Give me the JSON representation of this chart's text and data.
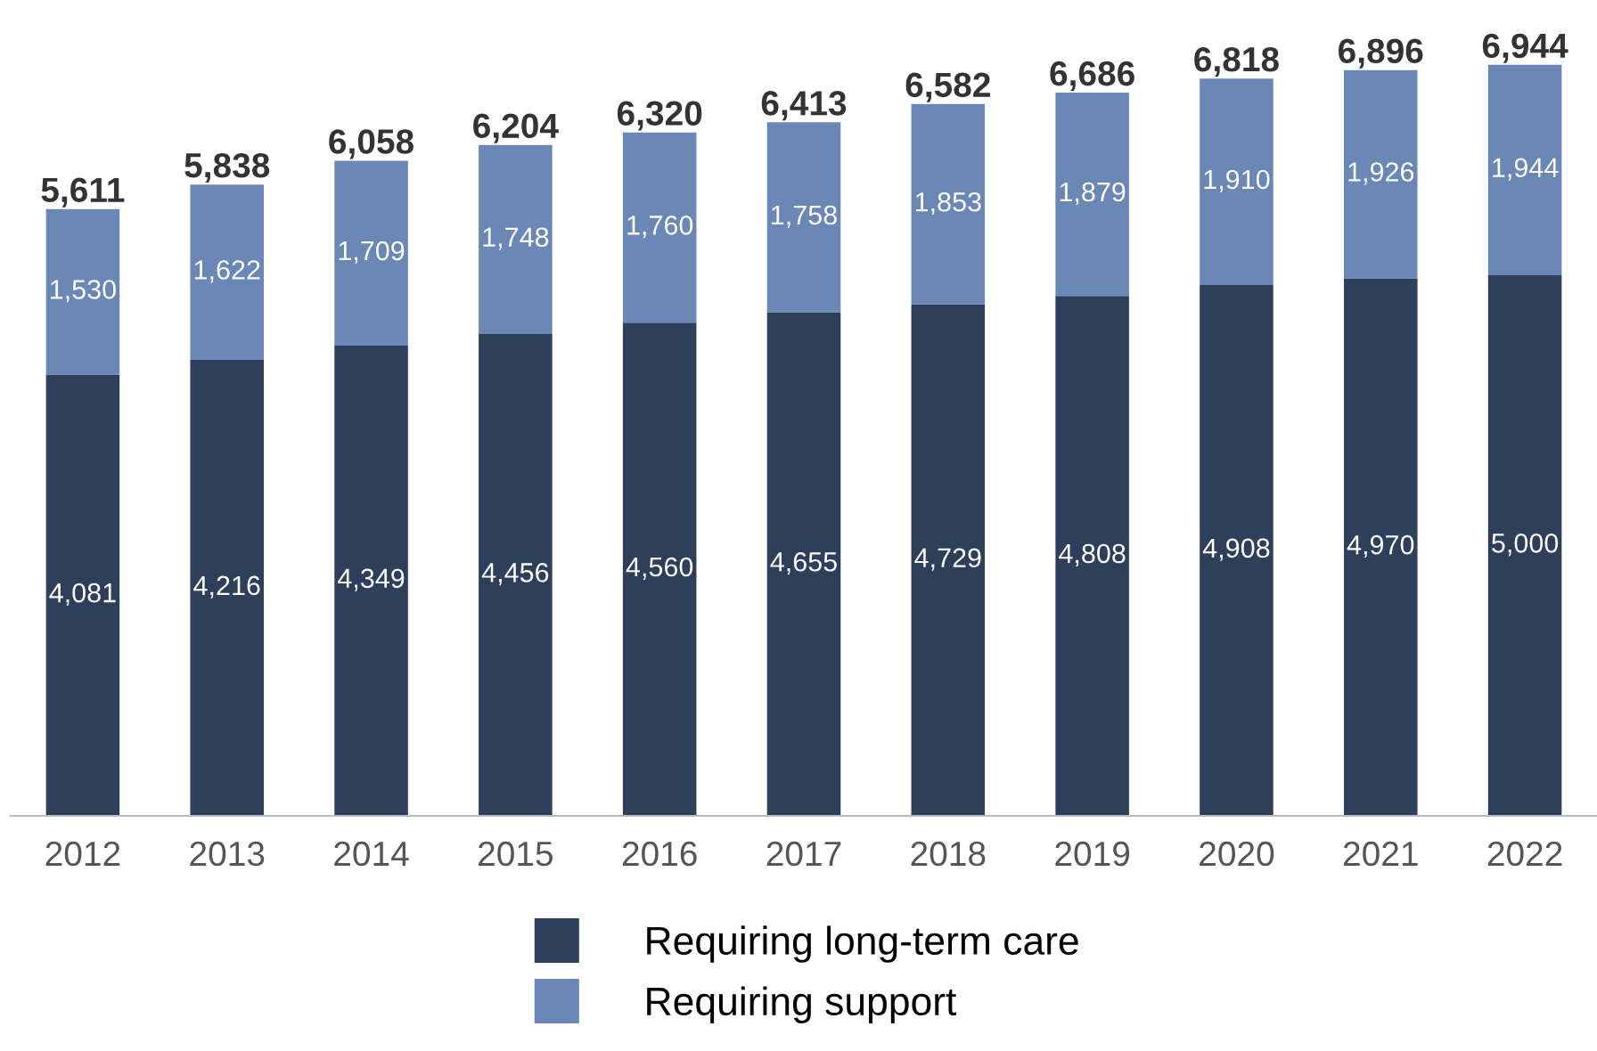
{
  "chart_data": {
    "type": "bar",
    "stacked": true,
    "legend": "bottom",
    "grid": false,
    "categories": [
      "2012",
      "2013",
      "2014",
      "2015",
      "2016",
      "2017",
      "2018",
      "2019",
      "2020",
      "2021",
      "2022"
    ],
    "series": [
      {
        "name": "Requiring long-term care",
        "color": "#2e3f5c",
        "values": [
          4081,
          4216,
          4349,
          4456,
          4560,
          4655,
          4729,
          4808,
          4908,
          4970,
          5000
        ],
        "value_labels": [
          "4,081",
          "4,216",
          "4,349",
          "4,456",
          "4,560",
          "4,655",
          "4,729",
          "4,808",
          "4,908",
          "4,970",
          "5,000"
        ]
      },
      {
        "name": "Requiring support",
        "color": "#6a87b5",
        "values": [
          1530,
          1622,
          1709,
          1748,
          1760,
          1758,
          1853,
          1879,
          1910,
          1926,
          1944
        ],
        "value_labels": [
          "1,530",
          "1,622",
          "1,709",
          "1,748",
          "1,760",
          "1,758",
          "1,853",
          "1,879",
          "1,910",
          "1,926",
          "1,944"
        ]
      }
    ],
    "totals": [
      "5,611",
      "5,838",
      "6,058",
      "6,204",
      "6,320",
      "6,413",
      "6,582",
      "6,686",
      "6,818",
      "6,896",
      "6,944"
    ]
  }
}
